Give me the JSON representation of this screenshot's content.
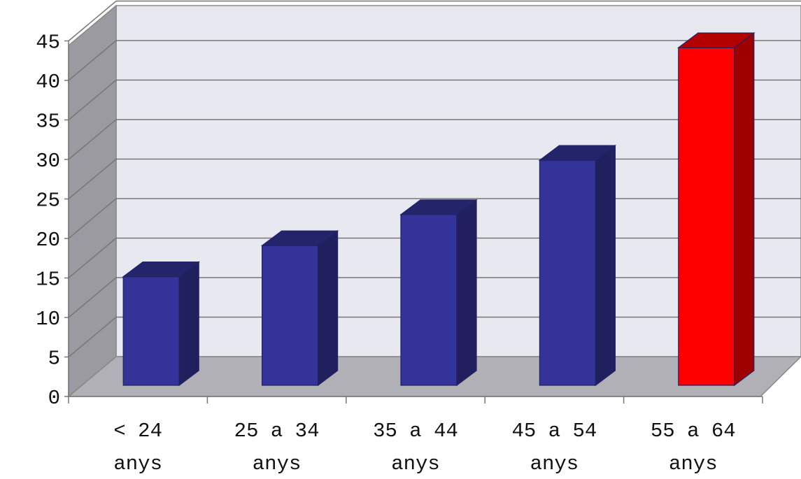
{
  "chart_data": {
    "type": "bar",
    "three_d": true,
    "categories": [
      [
        "< 24",
        "anys"
      ],
      [
        "25 a 34",
        "anys"
      ],
      [
        "35 a 44",
        "anys"
      ],
      [
        "45 a 54",
        "anys"
      ],
      [
        "55 a 64",
        "anys"
      ]
    ],
    "values": [
      14,
      18,
      22,
      29,
      43.5
    ],
    "bar_colors": [
      "#333399",
      "#333399",
      "#333399",
      "#333399",
      "#ff0000"
    ],
    "title": "",
    "xlabel": "",
    "ylabel": "",
    "ylim": [
      0,
      45
    ],
    "yticks": [
      0,
      5,
      10,
      15,
      20,
      25,
      30,
      35,
      40,
      45
    ],
    "grid": true
  }
}
